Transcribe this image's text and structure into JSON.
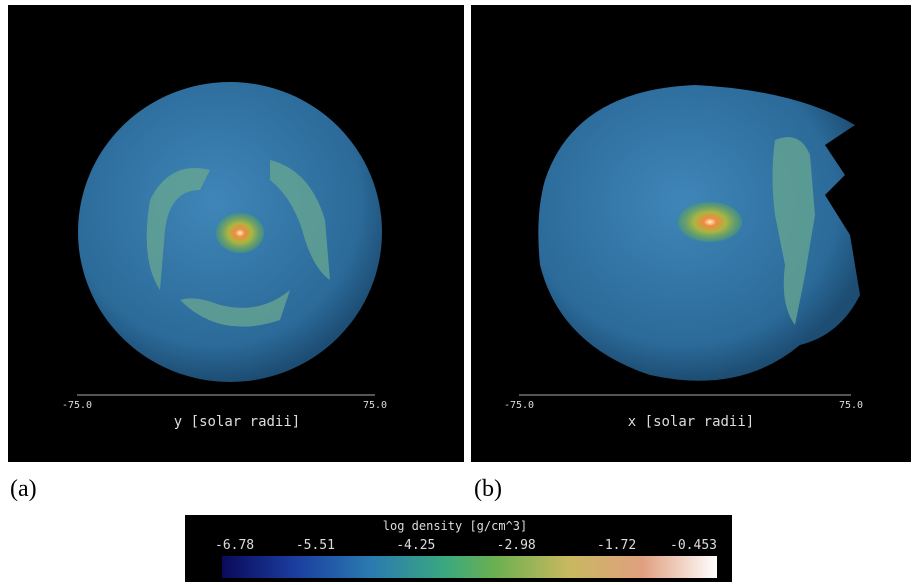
{
  "panels": [
    {
      "label": "(a)",
      "axis_label": "y [solar radii]",
      "axis_min": "-75.0",
      "axis_max": "75.0"
    },
    {
      "label": "(b)",
      "axis_label": "x [solar radii]",
      "axis_min": "-75.0",
      "axis_max": "75.0"
    }
  ],
  "colorbar": {
    "title": "log density [g/cm^3]",
    "ticks": [
      "-6.78",
      "-5.51",
      "-4.25",
      "-2.98",
      "-1.72",
      "-0.453"
    ]
  }
}
